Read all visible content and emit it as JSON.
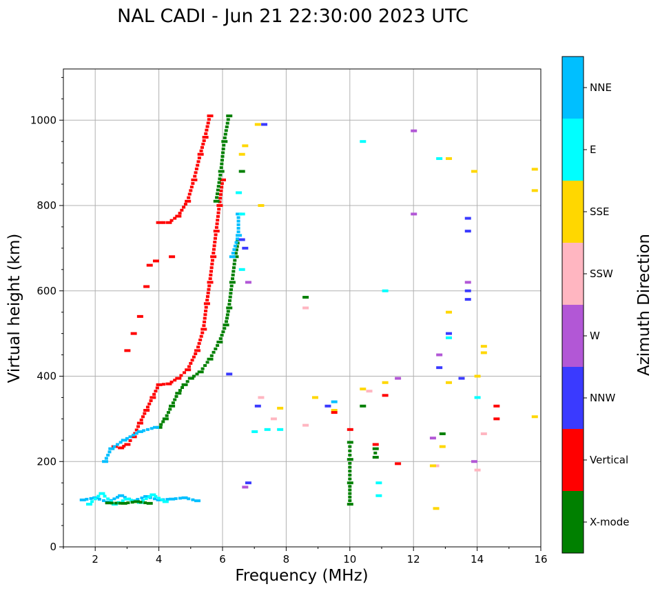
{
  "chart_data": {
    "type": "scatter",
    "title": "NAL CADI - Jun 21 22:30:00 2023 UTC",
    "xlabel": "Frequency (MHz)",
    "ylabel": "Virtual height (km)",
    "xlim": [
      1,
      16
    ],
    "ylim": [
      0,
      1120
    ],
    "xticks": [
      2,
      4,
      6,
      8,
      10,
      12,
      14,
      16
    ],
    "yticks": [
      0,
      200,
      400,
      600,
      800,
      1000
    ],
    "grid": true,
    "colorbar": {
      "title": "Azimuth Direction",
      "categories": [
        {
          "name": "X-mode",
          "color": "#008000"
        },
        {
          "name": "Vertical",
          "color": "#ff0000"
        },
        {
          "name": "NNW",
          "color": "#3a3aff"
        },
        {
          "name": "W",
          "color": "#b257d6"
        },
        {
          "name": "SSW",
          "color": "#ffb6c1"
        },
        {
          "name": "SSE",
          "color": "#ffd700"
        },
        {
          "name": "E",
          "color": "#00ffff"
        },
        {
          "name": "NNE",
          "color": "#00bfff"
        }
      ]
    },
    "traces": [
      {
        "label": "vertical-o-trace-lower",
        "direction": "Vertical",
        "points": [
          [
            2.6,
            235
          ],
          [
            2.8,
            232
          ],
          [
            3.0,
            240
          ],
          [
            3.2,
            258
          ],
          [
            3.4,
            290
          ],
          [
            3.6,
            320
          ],
          [
            3.8,
            350
          ],
          [
            4.0,
            380
          ],
          [
            4.3,
            382
          ],
          [
            4.6,
            395
          ],
          [
            4.9,
            415
          ],
          [
            5.2,
            460
          ],
          [
            5.4,
            510
          ],
          [
            5.5,
            570
          ],
          [
            5.6,
            620
          ],
          [
            5.7,
            680
          ],
          [
            5.8,
            740
          ],
          [
            5.9,
            800
          ],
          [
            6.0,
            860
          ]
        ]
      },
      {
        "label": "vertical-o-trace-upper",
        "direction": "Vertical",
        "points": [
          [
            4.0,
            760
          ],
          [
            4.3,
            760
          ],
          [
            4.6,
            775
          ],
          [
            4.9,
            810
          ],
          [
            5.1,
            860
          ],
          [
            5.3,
            920
          ],
          [
            5.45,
            960
          ],
          [
            5.6,
            1010
          ]
        ]
      },
      {
        "label": "vertical-scatter-mid",
        "direction": "Vertical",
        "points": [
          [
            3.0,
            460
          ],
          [
            3.2,
            500
          ],
          [
            3.4,
            540
          ],
          [
            3.6,
            610
          ],
          [
            3.7,
            660
          ],
          [
            3.9,
            670
          ],
          [
            4.4,
            680
          ]
        ]
      },
      {
        "label": "x-mode-trace",
        "direction": "X-mode",
        "points": [
          [
            4.0,
            280
          ],
          [
            4.2,
            300
          ],
          [
            4.4,
            330
          ],
          [
            4.6,
            360
          ],
          [
            4.8,
            380
          ],
          [
            5.0,
            395
          ],
          [
            5.3,
            410
          ],
          [
            5.6,
            440
          ],
          [
            5.9,
            480
          ],
          [
            6.1,
            520
          ],
          [
            6.2,
            560
          ],
          [
            6.3,
            620
          ],
          [
            6.4,
            680
          ],
          [
            6.5,
            720
          ]
        ]
      },
      {
        "label": "x-mode-upper",
        "direction": "X-mode",
        "points": [
          [
            5.8,
            810
          ],
          [
            5.95,
            880
          ],
          [
            6.05,
            950
          ],
          [
            6.2,
            1010
          ],
          [
            6.6,
            880
          ]
        ]
      },
      {
        "label": "e-layer-nne",
        "direction": "NNE",
        "points": [
          [
            1.6,
            110
          ],
          [
            2.0,
            115
          ],
          [
            2.4,
            105
          ],
          [
            2.8,
            120
          ],
          [
            3.2,
            108
          ],
          [
            3.6,
            118
          ],
          [
            4.0,
            110
          ],
          [
            4.4,
            112
          ],
          [
            4.8,
            115
          ],
          [
            5.2,
            108
          ]
        ]
      },
      {
        "label": "e-layer-mixed",
        "direction": "E",
        "points": [
          [
            1.8,
            100
          ],
          [
            2.2,
            125
          ],
          [
            2.6,
            100
          ],
          [
            3.0,
            112
          ],
          [
            3.4,
            104
          ],
          [
            3.8,
            122
          ],
          [
            4.2,
            106
          ]
        ]
      },
      {
        "label": "x-mode-e-layer",
        "direction": "X-mode",
        "points": [
          [
            2.4,
            103
          ],
          [
            2.9,
            102
          ],
          [
            3.3,
            106
          ],
          [
            3.7,
            102
          ]
        ]
      },
      {
        "label": "nne-f-trace",
        "direction": "NNE",
        "points": [
          [
            2.3,
            200
          ],
          [
            2.5,
            230
          ],
          [
            2.9,
            250
          ],
          [
            3.4,
            270
          ],
          [
            3.9,
            280
          ],
          [
            6.3,
            680
          ],
          [
            6.5,
            730
          ],
          [
            6.5,
            780
          ],
          [
            9.5,
            340
          ]
        ]
      },
      {
        "label": "e-scatter",
        "direction": "E",
        "points": [
          [
            6.6,
            780
          ],
          [
            6.5,
            830
          ],
          [
            6.6,
            650
          ],
          [
            7.0,
            270
          ],
          [
            7.4,
            275
          ],
          [
            7.8,
            275
          ],
          [
            10.4,
            950
          ],
          [
            10.9,
            150
          ],
          [
            10.9,
            120
          ],
          [
            11.1,
            600
          ],
          [
            12.8,
            910
          ],
          [
            13.1,
            490
          ],
          [
            14.0,
            350
          ]
        ]
      },
      {
        "label": "nnw-scatter",
        "direction": "NNW",
        "points": [
          [
            6.7,
            700
          ],
          [
            6.6,
            720
          ],
          [
            6.8,
            150
          ],
          [
            7.1,
            330
          ],
          [
            7.3,
            990
          ],
          [
            9.3,
            330
          ],
          [
            13.7,
            770
          ],
          [
            13.7,
            740
          ],
          [
            13.7,
            600
          ],
          [
            13.7,
            580
          ],
          [
            12.8,
            420
          ],
          [
            13.1,
            500
          ],
          [
            13.5,
            395
          ],
          [
            6.2,
            405
          ]
        ]
      },
      {
        "label": "w-scatter",
        "direction": "W",
        "points": [
          [
            6.8,
            620
          ],
          [
            6.7,
            140
          ],
          [
            11.5,
            395
          ],
          [
            12.0,
            975
          ],
          [
            12.0,
            780
          ],
          [
            12.6,
            255
          ],
          [
            12.8,
            450
          ],
          [
            13.7,
            620
          ],
          [
            13.9,
            200
          ]
        ]
      },
      {
        "label": "ssw-scatter",
        "direction": "SSW",
        "points": [
          [
            7.2,
            350
          ],
          [
            7.6,
            300
          ],
          [
            8.6,
            560
          ],
          [
            8.6,
            285
          ],
          [
            10.6,
            365
          ],
          [
            12.7,
            190
          ],
          [
            14.2,
            265
          ],
          [
            14.0,
            180
          ]
        ]
      },
      {
        "label": "sse-scatter",
        "direction": "SSE",
        "points": [
          [
            6.6,
            920
          ],
          [
            6.7,
            940
          ],
          [
            7.1,
            990
          ],
          [
            7.2,
            800
          ],
          [
            7.8,
            325
          ],
          [
            8.9,
            350
          ],
          [
            9.5,
            320
          ],
          [
            10.4,
            370
          ],
          [
            11.1,
            385
          ],
          [
            12.6,
            190
          ],
          [
            12.7,
            90
          ],
          [
            12.9,
            235
          ],
          [
            13.1,
            550
          ],
          [
            13.1,
            385
          ],
          [
            13.1,
            910
          ],
          [
            13.9,
            880
          ],
          [
            14.0,
            400
          ],
          [
            14.2,
            470
          ],
          [
            14.2,
            455
          ],
          [
            15.8,
            835
          ],
          [
            15.8,
            885
          ],
          [
            15.8,
            305
          ]
        ]
      },
      {
        "label": "red-scatter-right",
        "direction": "Vertical",
        "points": [
          [
            10.0,
            275
          ],
          [
            10.8,
            240
          ],
          [
            11.1,
            355
          ],
          [
            11.5,
            195
          ],
          [
            14.6,
            330
          ],
          [
            14.6,
            300
          ],
          [
            9.5,
            315
          ]
        ]
      },
      {
        "label": "x-mode-10mhz",
        "direction": "X-mode",
        "points": [
          [
            10.0,
            245
          ],
          [
            10.0,
            205
          ],
          [
            10.0,
            150
          ],
          [
            10.0,
            100
          ],
          [
            10.8,
            230
          ],
          [
            10.8,
            210
          ],
          [
            8.6,
            585
          ],
          [
            12.9,
            265
          ],
          [
            10.4,
            330
          ]
        ]
      }
    ]
  }
}
